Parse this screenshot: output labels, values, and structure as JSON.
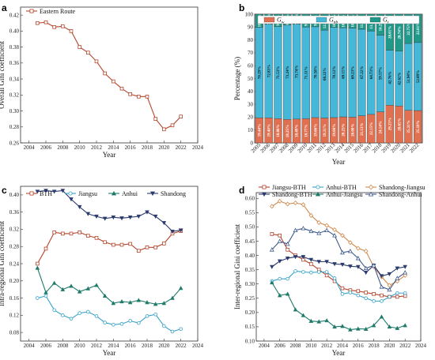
{
  "chart_data": [
    {
      "panel": "a",
      "type": "line",
      "xlabel": "Year",
      "ylabel": "Overall Gini coefficient",
      "xlim": [
        2003,
        2024
      ],
      "ylim": [
        0.26,
        0.43
      ],
      "xticks": [
        2004,
        2006,
        2008,
        2010,
        2012,
        2014,
        2016,
        2018,
        2020,
        2022,
        2024
      ],
      "yticks": [
        0.26,
        0.28,
        0.3,
        0.32,
        0.34,
        0.36,
        0.38,
        0.4,
        0.42
      ],
      "x": [
        2005,
        2006,
        2007,
        2008,
        2009,
        2010,
        2011,
        2012,
        2013,
        2014,
        2015,
        2016,
        2017,
        2018,
        2019,
        2020,
        2021,
        2022
      ],
      "series": [
        {
          "name": "Eastern Route",
          "color": "#b5452c",
          "marker": "square",
          "values": [
            0.41,
            0.411,
            0.405,
            0.406,
            0.4,
            0.38,
            0.373,
            0.362,
            0.347,
            0.337,
            0.328,
            0.321,
            0.318,
            0.318,
            0.29,
            0.277,
            0.282,
            0.293
          ]
        }
      ]
    },
    {
      "panel": "b",
      "type": "bar",
      "stacked": true,
      "xlabel": "Year",
      "ylabel": "Percentage (%)",
      "ylim": [
        0,
        100
      ],
      "yticks": [
        0,
        10,
        20,
        30,
        40,
        50,
        60,
        70,
        80,
        90,
        100
      ],
      "categories": [
        "2005",
        "2006",
        "2007",
        "2008",
        "2009",
        "2010",
        "2011",
        "2012",
        "2013",
        "2014",
        "2015",
        "2016",
        "2017",
        "2018",
        "2019",
        "2020",
        "2021",
        "2022"
      ],
      "series": [
        {
          "name": "w",
          "legend_label": "G",
          "legend_sub": "w",
          "color": "#e07050",
          "values": [
            19.44,
            19.4,
            18.86,
            18.25,
            18.49,
            18.77,
            19.66,
            19.31,
            19.66,
            20.23,
            20.0,
            21.13,
            22.15,
            24.14,
            29.23,
            28.65,
            25.31,
            25.1
          ],
          "labels": [
            "19.44%",
            "19.40%",
            "18.86%",
            "18.25%",
            "18.49%",
            "18.77%",
            "19.66%",
            "19.31%",
            "19.66%",
            "20.23%",
            "20.00%",
            "21.13%",
            "22.15%",
            "24.14%",
            "29.23%",
            "28.65%",
            "25.31%",
            "25.10%"
          ]
        },
        {
          "name": "nb",
          "legend_label": "G",
          "legend_sub": "nb",
          "color": "#45b8d9",
          "values": [
            70.29,
            72.83,
            71.53,
            73.24,
            73.74,
            71.31,
            70.58,
            68.22,
            70.12,
            69.15,
            69.23,
            67.22,
            64.73,
            59.57,
            42.76,
            42.62,
            51.94,
            52.89
          ],
          "labels": [
            "70.29%",
            "72.83%",
            "71.53%",
            "73.24%",
            "73.74%",
            "71.31%",
            "70.58%",
            "68.22%",
            "70.12%",
            "69.15%",
            "69.23%",
            "67.22%",
            "64.73%",
            "59.57%",
            "42.76%",
            "42.62%",
            "51.94%",
            "52.89%"
          ]
        },
        {
          "name": "t",
          "legend_label": "G",
          "legend_sub": "t",
          "color": "#1f9a8a",
          "values": [
            10.26,
            7.77,
            9.61,
            8.51,
            7.77,
            9.92,
            9.76,
            12.47,
            10.22,
            10.62,
            10.77,
            11.65,
            13.12,
            16.29,
            28.01,
            28.74,
            22.75,
            22.01
          ],
          "labels": [
            "10.26%",
            "7.77%",
            "9.61%",
            "8.51%",
            "7.77%",
            "9.92%",
            "9.76%",
            "12.47%",
            "10.22%",
            "10.62%",
            "10.77%",
            "11.65%",
            "13.12%",
            "16.29%",
            "28.01%",
            "28.74%",
            "22.75%",
            "22.01%"
          ]
        }
      ]
    },
    {
      "panel": "c",
      "type": "line",
      "xlabel": "Year",
      "ylabel": "Intra-regional Gini coefficient",
      "xlim": [
        2003,
        2024
      ],
      "ylim": [
        0.06,
        0.42
      ],
      "xticks": [
        2004,
        2006,
        2008,
        2010,
        2012,
        2014,
        2016,
        2018,
        2020,
        2022,
        2024
      ],
      "yticks": [
        0.08,
        0.12,
        0.16,
        0.2,
        0.24,
        0.28,
        0.32,
        0.36,
        0.4
      ],
      "x": [
        2005,
        2006,
        2007,
        2008,
        2009,
        2010,
        2011,
        2012,
        2013,
        2014,
        2015,
        2016,
        2017,
        2018,
        2019,
        2020,
        2021,
        2022
      ],
      "series": [
        {
          "name": "BTH",
          "color": "#b5452c",
          "marker": "square",
          "values": [
            0.24,
            0.275,
            0.313,
            0.31,
            0.31,
            0.313,
            0.305,
            0.3,
            0.29,
            0.284,
            0.284,
            0.286,
            0.27,
            0.278,
            0.278,
            0.287,
            0.31,
            0.316
          ]
        },
        {
          "name": "Jiangsu",
          "color": "#3aa3c8",
          "marker": "circle",
          "values": [
            0.16,
            0.165,
            0.132,
            0.12,
            0.112,
            0.125,
            0.128,
            0.118,
            0.103,
            0.098,
            0.1,
            0.107,
            0.102,
            0.118,
            0.122,
            0.095,
            0.082,
            0.088
          ]
        },
        {
          "name": "Anhui",
          "color": "#1f7a6a",
          "marker": "triangle-up",
          "values": [
            0.23,
            0.173,
            0.195,
            0.18,
            0.188,
            0.175,
            0.182,
            0.19,
            0.165,
            0.148,
            0.152,
            0.15,
            0.155,
            0.15,
            0.146,
            0.148,
            0.16,
            0.183
          ]
        },
        {
          "name": "Shandong",
          "color": "#2b3b6e",
          "marker": "triangle-down",
          "values": [
            0.408,
            0.41,
            0.408,
            0.41,
            0.39,
            0.372,
            0.356,
            0.35,
            0.345,
            0.348,
            0.346,
            0.348,
            0.35,
            0.36,
            0.35,
            0.335,
            0.315,
            0.318
          ]
        }
      ]
    },
    {
      "panel": "d",
      "type": "line",
      "xlabel": "Year",
      "ylabel": "Inter-regional Gini coefficient",
      "xlim": [
        2003,
        2024
      ],
      "ylim": [
        0.1,
        0.62
      ],
      "xticks": [
        2004,
        2006,
        2008,
        2010,
        2012,
        2014,
        2016,
        2018,
        2020,
        2022,
        2024
      ],
      "yticks": [
        0.1,
        0.15,
        0.2,
        0.25,
        0.3,
        0.35,
        0.4,
        0.45,
        0.5,
        0.55,
        0.6
      ],
      "x": [
        2005,
        2006,
        2007,
        2008,
        2009,
        2010,
        2011,
        2012,
        2013,
        2014,
        2015,
        2016,
        2017,
        2018,
        2019,
        2020,
        2021,
        2022
      ],
      "series": [
        {
          "name": "Jiangsu-BTH",
          "color": "#b5452c",
          "marker": "square",
          "values": [
            0.475,
            0.47,
            0.42,
            0.4,
            0.385,
            0.37,
            0.35,
            0.33,
            0.31,
            0.285,
            0.278,
            0.275,
            0.27,
            0.265,
            0.26,
            0.255,
            0.255,
            0.258
          ]
        },
        {
          "name": "Anhui-BTH",
          "color": "#3aa3c8",
          "marker": "circle",
          "values": [
            0.31,
            0.318,
            0.318,
            0.345,
            0.342,
            0.34,
            0.342,
            0.342,
            0.32,
            0.265,
            0.27,
            0.26,
            0.25,
            0.24,
            0.24,
            0.255,
            0.268,
            0.268
          ]
        },
        {
          "name": "Shandong-Jiangsu",
          "color": "#d08a4e",
          "marker": "diamond",
          "values": [
            0.572,
            0.59,
            0.58,
            0.584,
            0.578,
            0.54,
            0.515,
            0.505,
            0.49,
            0.47,
            0.445,
            0.425,
            0.415,
            0.36,
            0.325,
            0.295,
            0.31,
            0.33
          ]
        },
        {
          "name": "Shandong-BTH",
          "color": "#2b3b6e",
          "marker": "triangle-down",
          "values": [
            0.36,
            0.38,
            0.39,
            0.395,
            0.395,
            0.385,
            0.378,
            0.378,
            0.37,
            0.368,
            0.362,
            0.36,
            0.34,
            0.365,
            0.328,
            0.335,
            0.355,
            0.36
          ]
        },
        {
          "name": "Anhui-Jiangsu",
          "color": "#1f7a6a",
          "marker": "triangle-up",
          "values": [
            0.305,
            0.26,
            0.265,
            0.21,
            0.19,
            0.17,
            0.168,
            0.172,
            0.15,
            0.152,
            0.14,
            0.143,
            0.142,
            0.155,
            0.185,
            0.15,
            0.145,
            0.155
          ]
        },
        {
          "name": "Shandong-Anhui",
          "color": "#3e5a8a",
          "marker": "triangle-up-open",
          "values": [
            0.42,
            0.45,
            0.44,
            0.488,
            0.495,
            0.485,
            0.478,
            0.488,
            0.47,
            0.41,
            0.415,
            0.39,
            0.355,
            0.365,
            0.29,
            0.28,
            0.32,
            0.34
          ]
        }
      ]
    }
  ]
}
